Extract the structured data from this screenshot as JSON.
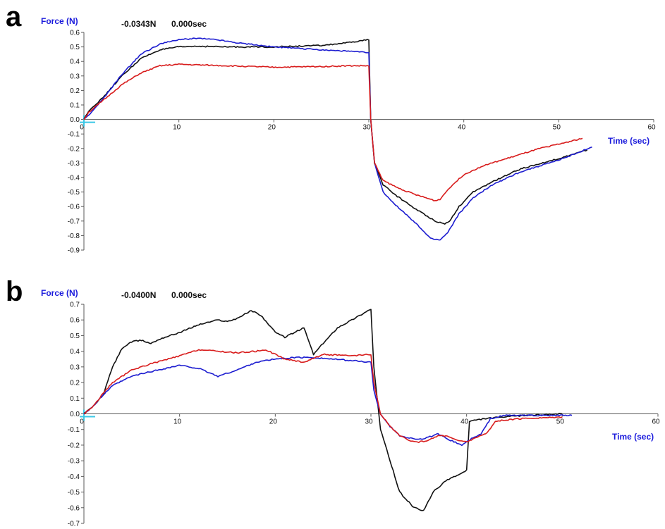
{
  "panels": [
    {
      "letter": "a",
      "y_axis_label": "Force (N)",
      "x_axis_label": "Time (sec)",
      "readout_force": "-0.0343N",
      "readout_time": "0.000sec"
    },
    {
      "letter": "b",
      "y_axis_label": "Force (N)",
      "x_axis_label": "Time (sec)",
      "readout_force": "-0.0400N",
      "readout_time": "0.000sec"
    }
  ],
  "colors": {
    "black": "#111111",
    "blue": "#1c1cd0",
    "red": "#d81c1c",
    "axis": "#5a5a5a",
    "cursor": "#3cc8e6"
  },
  "chart_data": [
    {
      "type": "line",
      "title": "",
      "xlabel": "Time (sec)",
      "ylabel": "Force (N)",
      "xlim": [
        0,
        60
      ],
      "ylim": [
        -0.9,
        0.6
      ],
      "x_ticks": [
        0,
        10,
        20,
        30,
        40,
        50,
        60
      ],
      "y_ticks": [
        0.6,
        0.5,
        0.4,
        0.3,
        0.2,
        0.1,
        0.0,
        -0.1,
        -0.2,
        -0.3,
        -0.4,
        -0.5,
        -0.6,
        -0.7,
        -0.8,
        -0.9
      ],
      "series": [
        {
          "color": "black",
          "points": [
            [
              0,
              0
            ],
            [
              0.5,
              0.06
            ],
            [
              2,
              0.15
            ],
            [
              4,
              0.3
            ],
            [
              6,
              0.42
            ],
            [
              8,
              0.48
            ],
            [
              10,
              0.5
            ],
            [
              12,
              0.505
            ],
            [
              15,
              0.5
            ],
            [
              20,
              0.5
            ],
            [
              25,
              0.51
            ],
            [
              28,
              0.53
            ],
            [
              30,
              0.55
            ],
            [
              30.2,
              0.0
            ],
            [
              30.6,
              -0.3
            ],
            [
              31.5,
              -0.45
            ],
            [
              33,
              -0.53
            ],
            [
              35,
              -0.62
            ],
            [
              37,
              -0.7
            ],
            [
              38,
              -0.72
            ],
            [
              38.5,
              -0.7
            ],
            [
              39.5,
              -0.6
            ],
            [
              41,
              -0.5
            ],
            [
              43,
              -0.43
            ],
            [
              46,
              -0.34
            ],
            [
              50,
              -0.27
            ],
            [
              53,
              -0.21
            ]
          ]
        },
        {
          "color": "blue",
          "points": [
            [
              0,
              0
            ],
            [
              0.5,
              0.03
            ],
            [
              2,
              0.14
            ],
            [
              4,
              0.31
            ],
            [
              6,
              0.45
            ],
            [
              8,
              0.52
            ],
            [
              10,
              0.55
            ],
            [
              12,
              0.56
            ],
            [
              14,
              0.55
            ],
            [
              16,
              0.53
            ],
            [
              20,
              0.5
            ],
            [
              25,
              0.48
            ],
            [
              28,
              0.47
            ],
            [
              30,
              0.46
            ],
            [
              30.2,
              0.0
            ],
            [
              30.6,
              -0.3
            ],
            [
              31.5,
              -0.5
            ],
            [
              33,
              -0.6
            ],
            [
              35,
              -0.72
            ],
            [
              36.5,
              -0.82
            ],
            [
              37.5,
              -0.83
            ],
            [
              38.3,
              -0.78
            ],
            [
              39.5,
              -0.65
            ],
            [
              41,
              -0.54
            ],
            [
              43,
              -0.45
            ],
            [
              46,
              -0.36
            ],
            [
              50,
              -0.28
            ],
            [
              53.5,
              -0.19
            ]
          ]
        },
        {
          "color": "red",
          "points": [
            [
              0,
              0
            ],
            [
              0.5,
              0.05
            ],
            [
              2,
              0.13
            ],
            [
              4,
              0.24
            ],
            [
              6,
              0.32
            ],
            [
              8,
              0.37
            ],
            [
              10,
              0.38
            ],
            [
              15,
              0.37
            ],
            [
              20,
              0.36
            ],
            [
              25,
              0.365
            ],
            [
              28,
              0.37
            ],
            [
              30,
              0.37
            ],
            [
              30.2,
              0.0
            ],
            [
              30.6,
              -0.3
            ],
            [
              31.5,
              -0.42
            ],
            [
              33,
              -0.47
            ],
            [
              35,
              -0.52
            ],
            [
              37,
              -0.56
            ],
            [
              37.5,
              -0.55
            ],
            [
              38.5,
              -0.47
            ],
            [
              40,
              -0.38
            ],
            [
              42,
              -0.32
            ],
            [
              45,
              -0.26
            ],
            [
              48,
              -0.2
            ],
            [
              50,
              -0.17
            ],
            [
              52.5,
              -0.13
            ]
          ]
        }
      ]
    },
    {
      "type": "line",
      "title": "",
      "xlabel": "Time (sec)",
      "ylabel": "Force (N)",
      "xlim": [
        0,
        60
      ],
      "ylim": [
        -0.7,
        0.7
      ],
      "x_ticks": [
        0,
        10,
        20,
        30,
        40,
        50,
        60
      ],
      "y_ticks": [
        0.7,
        0.6,
        0.5,
        0.4,
        0.3,
        0.2,
        0.1,
        0.0,
        -0.1,
        -0.2,
        -0.3,
        -0.4,
        -0.5,
        -0.6,
        -0.7
      ],
      "series": [
        {
          "color": "black",
          "points": [
            [
              0,
              0
            ],
            [
              1,
              0.05
            ],
            [
              2,
              0.12
            ],
            [
              3,
              0.3
            ],
            [
              4,
              0.42
            ],
            [
              5,
              0.46
            ],
            [
              6,
              0.47
            ],
            [
              7,
              0.45
            ],
            [
              8,
              0.48
            ],
            [
              10,
              0.52
            ],
            [
              12,
              0.57
            ],
            [
              14,
              0.6
            ],
            [
              15,
              0.59
            ],
            [
              16,
              0.61
            ],
            [
              17.5,
              0.66
            ],
            [
              18.5,
              0.63
            ],
            [
              20,
              0.52
            ],
            [
              21,
              0.49
            ],
            [
              22,
              0.52
            ],
            [
              23,
              0.55
            ],
            [
              24,
              0.38
            ],
            [
              25,
              0.45
            ],
            [
              26.5,
              0.55
            ],
            [
              28,
              0.6
            ],
            [
              30,
              0.67
            ],
            [
              30.3,
              0.3
            ],
            [
              31,
              -0.1
            ],
            [
              32,
              -0.3
            ],
            [
              33,
              -0.5
            ],
            [
              34.5,
              -0.6
            ],
            [
              35.5,
              -0.62
            ],
            [
              36.5,
              -0.5
            ],
            [
              38,
              -0.42
            ],
            [
              39.5,
              -0.38
            ],
            [
              40,
              -0.36
            ],
            [
              40.3,
              -0.05
            ],
            [
              41,
              -0.04
            ],
            [
              42,
              -0.03
            ],
            [
              44,
              -0.02
            ],
            [
              46,
              -0.01
            ],
            [
              50,
              0.0
            ]
          ]
        },
        {
          "color": "blue",
          "points": [
            [
              0,
              0
            ],
            [
              1,
              0.05
            ],
            [
              2,
              0.12
            ],
            [
              3,
              0.18
            ],
            [
              5,
              0.24
            ],
            [
              7,
              0.27
            ],
            [
              10,
              0.31
            ],
            [
              12,
              0.29
            ],
            [
              14,
              0.24
            ],
            [
              16,
              0.28
            ],
            [
              18,
              0.33
            ],
            [
              20,
              0.35
            ],
            [
              22,
              0.36
            ],
            [
              24,
              0.36
            ],
            [
              26,
              0.35
            ],
            [
              28,
              0.34
            ],
            [
              30,
              0.33
            ],
            [
              30.3,
              0.15
            ],
            [
              31,
              0.0
            ],
            [
              32,
              -0.08
            ],
            [
              33,
              -0.14
            ],
            [
              34.5,
              -0.16
            ],
            [
              35.5,
              -0.16
            ],
            [
              37,
              -0.13
            ],
            [
              38,
              -0.16
            ],
            [
              39.5,
              -0.2
            ],
            [
              40.5,
              -0.16
            ],
            [
              41.5,
              -0.13
            ],
            [
              42.5,
              -0.03
            ],
            [
              44,
              -0.01
            ],
            [
              46,
              -0.01
            ],
            [
              51,
              -0.01
            ]
          ]
        },
        {
          "color": "red",
          "points": [
            [
              0,
              0
            ],
            [
              1,
              0.05
            ],
            [
              2,
              0.13
            ],
            [
              3,
              0.2
            ],
            [
              5,
              0.28
            ],
            [
              7,
              0.32
            ],
            [
              10,
              0.37
            ],
            [
              12,
              0.41
            ],
            [
              14,
              0.4
            ],
            [
              16,
              0.39
            ],
            [
              18,
              0.4
            ],
            [
              19,
              0.41
            ],
            [
              21,
              0.35
            ],
            [
              23,
              0.33
            ],
            [
              25,
              0.38
            ],
            [
              28,
              0.37
            ],
            [
              30,
              0.38
            ],
            [
              30.3,
              0.2
            ],
            [
              31,
              0.0
            ],
            [
              32,
              -0.08
            ],
            [
              33,
              -0.14
            ],
            [
              34,
              -0.17
            ],
            [
              35,
              -0.18
            ],
            [
              36,
              -0.17
            ],
            [
              37,
              -0.14
            ],
            [
              38,
              -0.14
            ],
            [
              39,
              -0.17
            ],
            [
              40,
              -0.18
            ],
            [
              41,
              -0.15
            ],
            [
              42,
              -0.13
            ],
            [
              43,
              -0.05
            ],
            [
              44,
              -0.04
            ],
            [
              46,
              -0.03
            ],
            [
              50,
              -0.02
            ]
          ]
        }
      ]
    }
  ]
}
